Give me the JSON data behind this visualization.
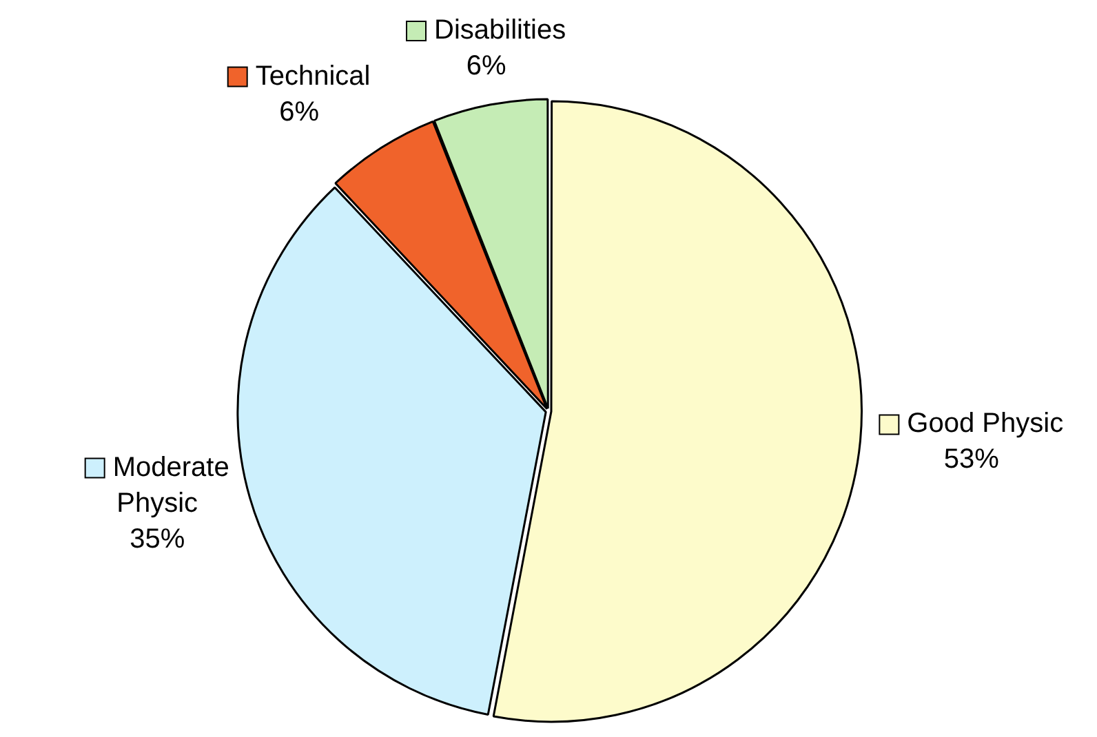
{
  "chart_data": {
    "type": "pie",
    "categories": [
      "Good Physic",
      "Moderate Physic",
      "Technical",
      "Disabilities"
    ],
    "values": [
      53,
      35,
      6,
      6
    ],
    "colors": [
      "#fdfbcb",
      "#cdf0fd",
      "#f0632b",
      "#c5ecb5"
    ],
    "value_labels": [
      "53%",
      "35%",
      "6%",
      "6%"
    ],
    "legend": "top"
  }
}
